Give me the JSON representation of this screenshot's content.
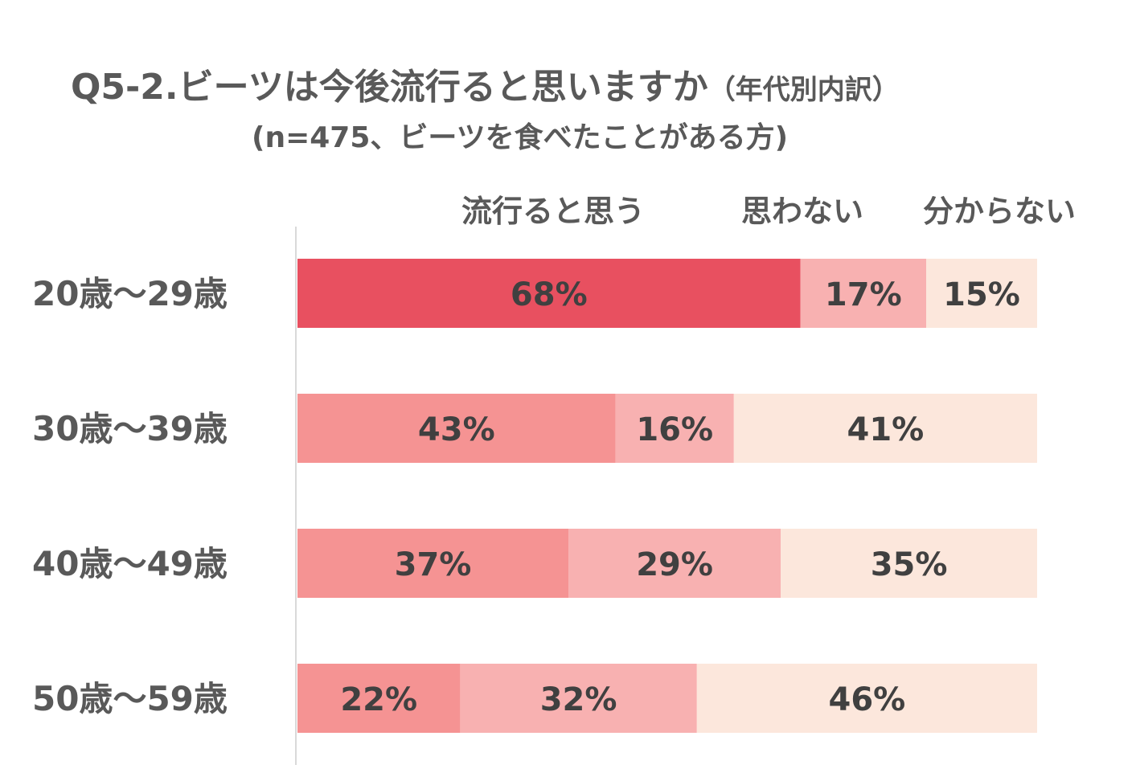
{
  "title": {
    "main": "Q5-2.ビーツは今後流行ると思いますか",
    "main_paren": "（年代別内訳）",
    "sub": "(n=475、ビーツを食べたことがある方)"
  },
  "chart_data": {
    "type": "bar",
    "orientation": "horizontal",
    "stacked": "percent",
    "title": "Q5-2.ビーツは今後流行ると思いますか（年代別内訳）",
    "subtitle": "(n=475、ビーツを食べたことがある方)",
    "categories": [
      "20歳～29歳",
      "30歳～39歳",
      "40歳～49歳",
      "50歳～59歳"
    ],
    "series": [
      {
        "name": "流行ると思う",
        "values": [
          68,
          43,
          37,
          22
        ],
        "labels": [
          "68%",
          "43%",
          "37%",
          "22%"
        ]
      },
      {
        "name": "思わない",
        "values": [
          17,
          16,
          29,
          32
        ],
        "labels": [
          "17%",
          "16%",
          "29%",
          "32%"
        ]
      },
      {
        "name": "分からない",
        "values": [
          15,
          41,
          35,
          46
        ],
        "labels": [
          "15%",
          "41%",
          "35%",
          "46%"
        ]
      }
    ],
    "xlim": [
      0,
      100
    ],
    "legend": "top",
    "grid": false,
    "colors": {
      "highlight": "#e85060",
      "yes": "#f59393",
      "no": "#f8b1b1",
      "unknown": "#fce7dc",
      "axis": "#d9d9d9"
    }
  }
}
